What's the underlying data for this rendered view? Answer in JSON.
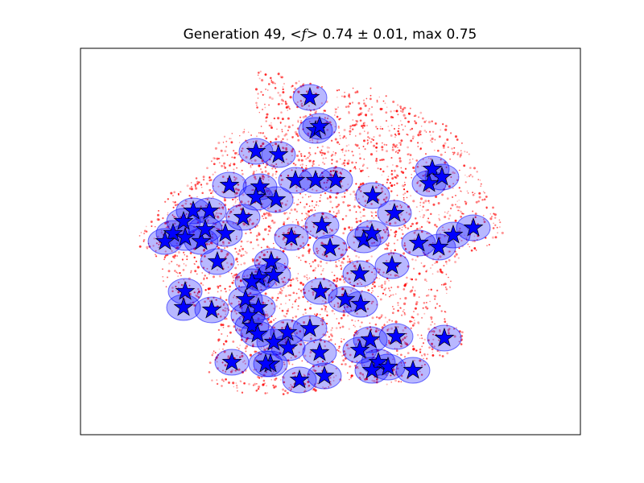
{
  "chart_data": {
    "type": "scatter",
    "title": "Generation 49, <f> 0.74 ± 0.01, max 0.75",
    "title_parts": {
      "generation": "Generation 49,",
      "mean_symbol": "<f>",
      "mean": "0.74 ± 0.01,",
      "max": "max 0.75"
    },
    "xlabel": "",
    "ylabel": "",
    "axes_ticks": "none",
    "grid": false,
    "colors": {
      "population_points": "#ff0000",
      "coverage_circles": "#0000ff",
      "stations": "#0000ff",
      "station_edge": "#000000"
    },
    "stations": [
      [
        385,
        121
      ],
      [
        392,
        162
      ],
      [
        397,
        157
      ],
      [
        318,
        188
      ],
      [
        346,
        192
      ],
      [
        537,
        210
      ],
      [
        549,
        220
      ],
      [
        533,
        228
      ],
      [
        285,
        230
      ],
      [
        323,
        232
      ],
      [
        367,
        224
      ],
      [
        392,
        224
      ],
      [
        417,
        224
      ],
      [
        318,
        245
      ],
      [
        343,
        248
      ],
      [
        463,
        243
      ],
      [
        490,
        265
      ],
      [
        400,
        280
      ],
      [
        240,
        262
      ],
      [
        260,
        262
      ],
      [
        302,
        270
      ],
      [
        215,
        290
      ],
      [
        230,
        295
      ],
      [
        250,
        300
      ],
      [
        280,
        290
      ],
      [
        228,
        275
      ],
      [
        255,
        285
      ],
      [
        205,
        300
      ],
      [
        362,
        295
      ],
      [
        410,
        308
      ],
      [
        452,
        298
      ],
      [
        462,
        290
      ],
      [
        520,
        302
      ],
      [
        545,
        307
      ],
      [
        563,
        292
      ],
      [
        588,
        283
      ],
      [
        270,
        325
      ],
      [
        337,
        325
      ],
      [
        322,
        345
      ],
      [
        340,
        342
      ],
      [
        447,
        340
      ],
      [
        487,
        330
      ],
      [
        313,
        350
      ],
      [
        230,
        362
      ],
      [
        398,
        362
      ],
      [
        305,
        372
      ],
      [
        321,
        382
      ],
      [
        429,
        372
      ],
      [
        448,
        378
      ],
      [
        228,
        382
      ],
      [
        263,
        385
      ],
      [
        308,
        392
      ],
      [
        313,
        405
      ],
      [
        320,
        415
      ],
      [
        385,
        408
      ],
      [
        357,
        413
      ],
      [
        340,
        425
      ],
      [
        358,
        432
      ],
      [
        460,
        422
      ],
      [
        492,
        418
      ],
      [
        552,
        420
      ],
      [
        336,
        452
      ],
      [
        397,
        438
      ],
      [
        447,
        435
      ],
      [
        288,
        450
      ],
      [
        330,
        452
      ],
      [
        470,
        450
      ],
      [
        482,
        456
      ],
      [
        462,
        460
      ],
      [
        513,
        460
      ],
      [
        372,
        472
      ],
      [
        403,
        467
      ]
    ]
  }
}
